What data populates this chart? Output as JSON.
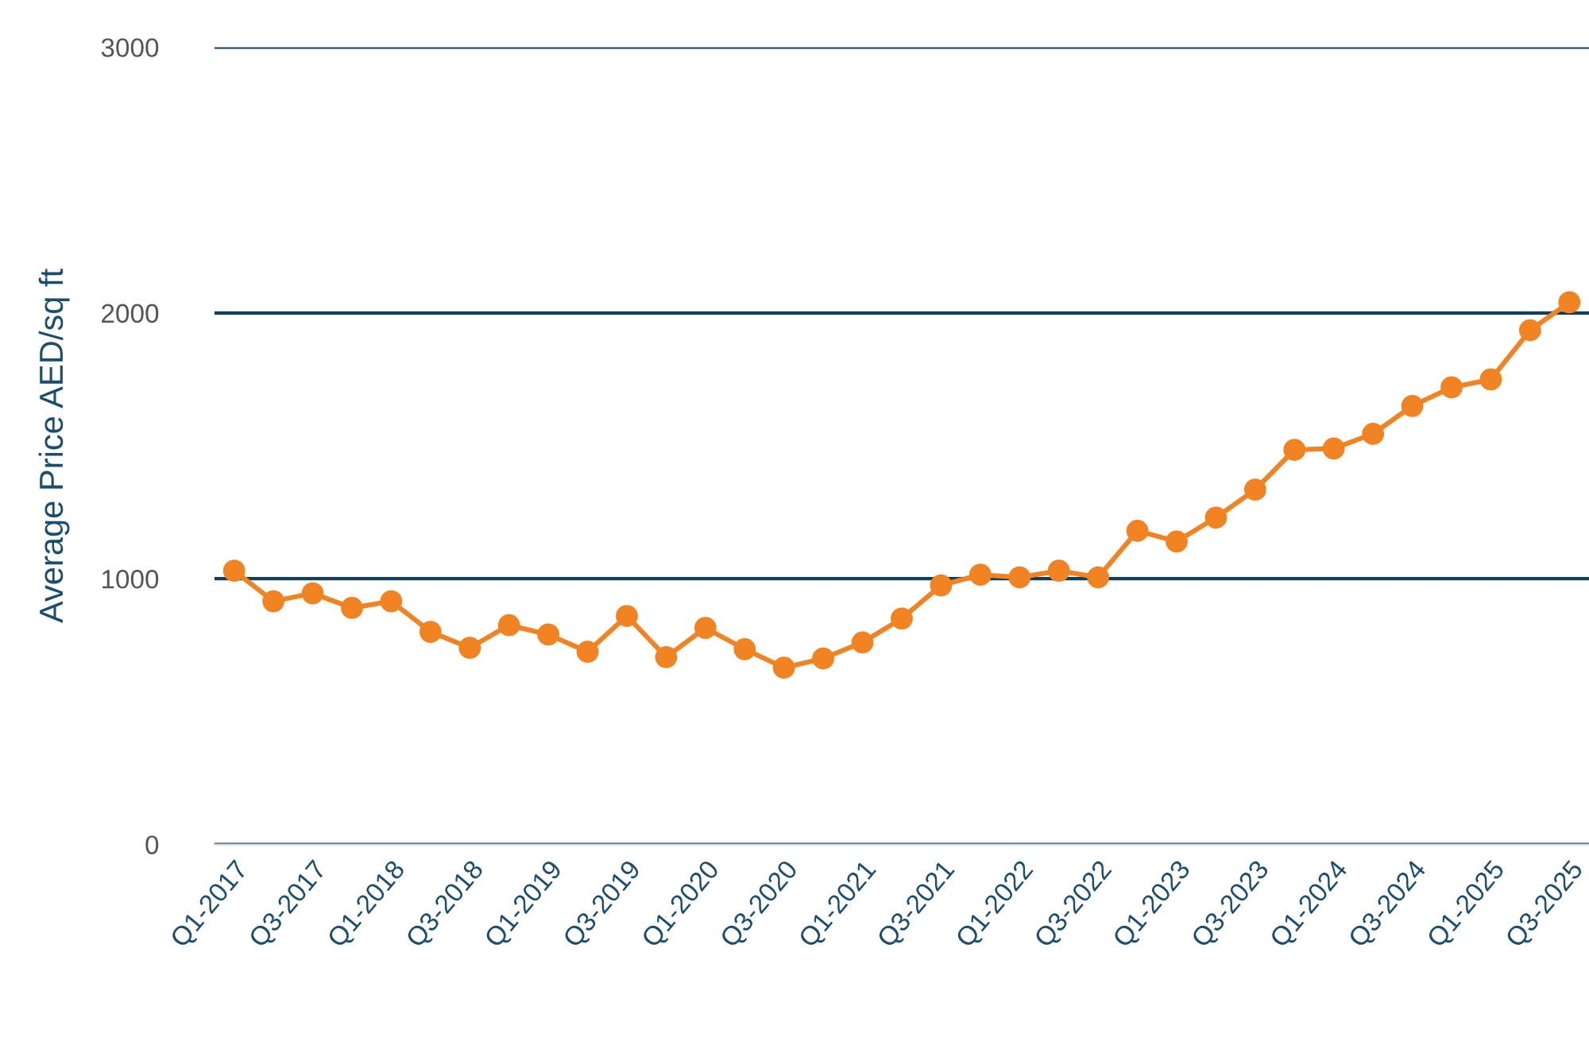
{
  "chart_data": {
    "type": "line",
    "ylabel": "Average Price AED/sq ft",
    "categories": [
      "Q1-2017",
      null,
      "Q3-2017",
      null,
      "Q1-2018",
      null,
      "Q3-2018",
      null,
      "Q1-2019",
      null,
      "Q3-2019",
      null,
      "Q1-2020",
      null,
      "Q3-2020",
      null,
      "Q1-2021",
      null,
      "Q3-2021",
      null,
      "Q1-2022",
      null,
      "Q3-2022",
      null,
      "Q1-2023",
      null,
      "Q3-2023",
      null,
      "Q1-2024",
      null,
      "Q3-2024",
      null,
      "Q1-2025",
      null,
      "Q3-2025"
    ],
    "series": [
      {
        "color": "#f28322",
        "values": [
          1030,
          915,
          945,
          890,
          915,
          800,
          740,
          825,
          790,
          725,
          860,
          705,
          815,
          735,
          665,
          700,
          760,
          850,
          975,
          1015,
          1005,
          1030,
          1005,
          1180,
          1140,
          1230,
          1335,
          1485,
          1490,
          1545,
          1650,
          1720,
          1750,
          1935,
          2040
        ]
      }
    ],
    "ylim": [
      0,
      3000
    ],
    "yticks": [
      0,
      1000,
      2000,
      3000
    ],
    "grid": "y",
    "marker": "circle",
    "line_style": "solid",
    "legend": false
  }
}
